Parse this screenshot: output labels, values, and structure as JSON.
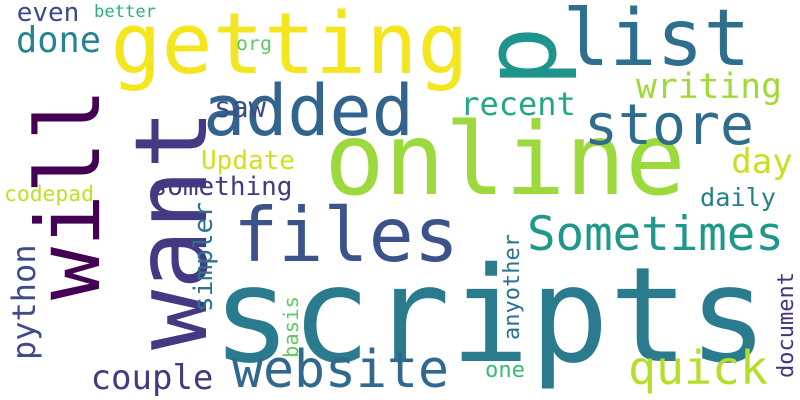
{
  "word_cloud": {
    "words": [
      {
        "key": "scripts",
        "text": "scripts",
        "color": "#2a7b8e",
        "orientation": "horizontal"
      },
      {
        "key": "online",
        "text": "online",
        "color": "#9bd93c",
        "orientation": "horizontal"
      },
      {
        "key": "getting",
        "text": "getting",
        "color": "#f4e61e",
        "orientation": "horizontal"
      },
      {
        "key": "p",
        "text": "p",
        "color": "#1f948c",
        "orientation": "vertical"
      },
      {
        "key": "list",
        "text": "list",
        "color": "#2e6f8e",
        "orientation": "horizontal"
      },
      {
        "key": "want",
        "text": "want",
        "color": "#443983",
        "orientation": "vertical"
      },
      {
        "key": "will",
        "text": "will",
        "color": "#440154",
        "orientation": "vertical"
      },
      {
        "key": "files",
        "text": "files",
        "color": "#3b528b",
        "orientation": "horizontal"
      },
      {
        "key": "added",
        "text": "added",
        "color": "#32648e",
        "orientation": "horizontal"
      },
      {
        "key": "store",
        "text": "store",
        "color": "#2f6c8e",
        "orientation": "horizontal"
      },
      {
        "key": "website",
        "text": "website",
        "color": "#31688e",
        "orientation": "horizontal"
      },
      {
        "key": "quick",
        "text": "quick",
        "color": "#b5de2b",
        "orientation": "horizontal"
      },
      {
        "key": "sometimes",
        "text": "Sometimes",
        "color": "#1f978b",
        "orientation": "horizontal"
      },
      {
        "key": "writing",
        "text": "writing",
        "color": "#a0da39",
        "orientation": "horizontal"
      },
      {
        "key": "recent",
        "text": "recent",
        "color": "#22a884",
        "orientation": "horizontal"
      },
      {
        "key": "done",
        "text": "done",
        "color": "#25848e",
        "orientation": "horizontal"
      },
      {
        "key": "couple",
        "text": "couple",
        "color": "#443983",
        "orientation": "horizontal"
      },
      {
        "key": "python",
        "text": "python",
        "color": "#3e4a89",
        "orientation": "vertical"
      },
      {
        "key": "day",
        "text": "day",
        "color": "#c8e020",
        "orientation": "horizontal"
      },
      {
        "key": "saw",
        "text": "saw",
        "color": "#3e4c8a",
        "orientation": "horizontal"
      },
      {
        "key": "something",
        "text": "something",
        "color": "#453781",
        "orientation": "horizontal"
      },
      {
        "key": "update",
        "text": "Update",
        "color": "#d0e11c",
        "orientation": "horizontal"
      },
      {
        "key": "daily",
        "text": "daily",
        "color": "#277f8e",
        "orientation": "horizontal"
      },
      {
        "key": "even",
        "text": "even",
        "color": "#3e4989",
        "orientation": "horizontal"
      },
      {
        "key": "better",
        "text": "better",
        "color": "#29af7f",
        "orientation": "horizontal"
      },
      {
        "key": "org",
        "text": "org",
        "color": "#5ec962",
        "orientation": "horizontal"
      },
      {
        "key": "codepad",
        "text": "codepad",
        "color": "#c2df23",
        "orientation": "horizontal"
      },
      {
        "key": "simpler",
        "text": "simpler",
        "color": "#2c738e",
        "orientation": "vertical"
      },
      {
        "key": "basis",
        "text": "basis",
        "color": "#5ec962",
        "orientation": "vertical"
      },
      {
        "key": "anyother",
        "text": "anyother",
        "color": "#2c728e",
        "orientation": "vertical"
      },
      {
        "key": "one",
        "text": "one",
        "color": "#3aba76",
        "orientation": "horizontal"
      },
      {
        "key": "document",
        "text": "document",
        "color": "#46337f",
        "orientation": "vertical"
      }
    ]
  }
}
